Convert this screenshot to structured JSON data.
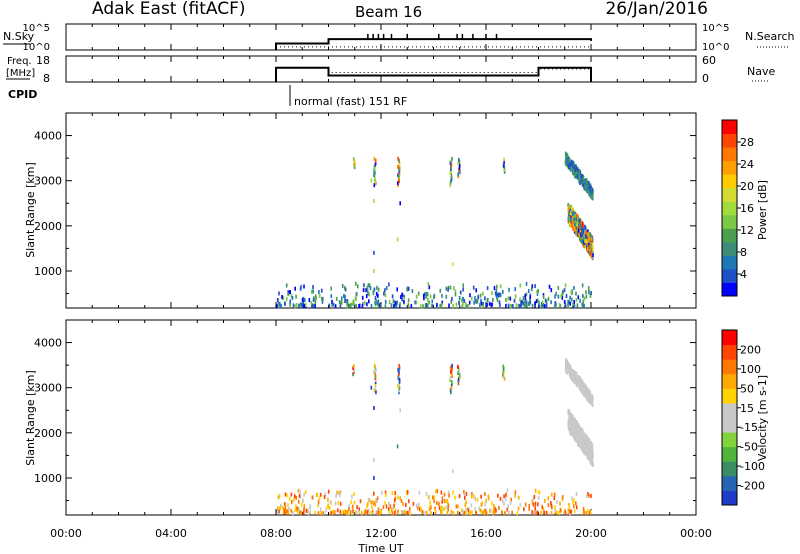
{
  "header": {
    "site": "Adak East (fitACF)",
    "beam": "Beam 16",
    "date": "26/Jan/2016"
  },
  "cpid": {
    "label": "CPID",
    "text": "normal (fast) 151 RF"
  },
  "chart_data": [
    {
      "type": "line",
      "id": "nsky-nsearch",
      "left_label": "N.Sky",
      "right_label": "N.Search",
      "left_ticks": [
        "10^5",
        "10^0"
      ],
      "right_ticks": [
        "10^5",
        "10^0"
      ],
      "x_range_hours": [
        0,
        24
      ],
      "x": [
        8,
        10,
        10.01,
        20
      ],
      "y": [
        0.25,
        0.25,
        0.4,
        0.35
      ],
      "spike_hours": [
        11.5,
        11.7,
        11.9,
        12.1,
        12.4,
        13.0,
        14.2,
        14.9,
        15.1,
        15.5,
        16.0,
        16.4
      ]
    },
    {
      "type": "line",
      "id": "freq-nave",
      "left_label_line1": "Freq.",
      "left_label_line2": "[MHz]",
      "right_label": "Nave",
      "left_ticks": [
        "18",
        "8"
      ],
      "right_ticks": [
        "60",
        "0"
      ],
      "ylim_left": [
        8,
        18
      ],
      "ylim_right": [
        0,
        60
      ],
      "x_range_hours": [
        0,
        24
      ],
      "freq_series": {
        "x": [
          8,
          10,
          10,
          18,
          18,
          20
        ],
        "y": [
          13.5,
          13.5,
          10.5,
          10.5,
          13.5,
          13.5
        ]
      },
      "nave_series": {
        "x": [
          8,
          10,
          10,
          18,
          18,
          20
        ],
        "y": [
          32,
          32,
          22,
          22,
          30,
          30
        ]
      }
    },
    {
      "type": "heatmap",
      "id": "power",
      "ylabel": "Slant Range [km]",
      "yticks": [
        1000,
        2000,
        3000,
        4000
      ],
      "ylim": [
        180,
        4500
      ],
      "x_range_hours": [
        0,
        24
      ],
      "colorbar_label": "Power [dB]",
      "colorbar_ticks": [
        "28",
        "24",
        "20",
        "16",
        "12",
        "8",
        "4"
      ],
      "colorbar_colors": [
        "#0000ff",
        "#1e50c8",
        "#1e78b4",
        "#3c8c78",
        "#4ba050",
        "#7ac843",
        "#a0dc3c",
        "#d2dc32",
        "#ffcc00",
        "#ffa000",
        "#ff7800",
        "#ff4600",
        "#ff0000"
      ]
    },
    {
      "type": "heatmap",
      "id": "velocity",
      "ylabel": "Slant Range [km]",
      "yticks": [
        1000,
        2000,
        3000,
        4000
      ],
      "ylim": [
        180,
        4500
      ],
      "x_range_hours": [
        0,
        24
      ],
      "colorbar_label": "Velocity [m s-1]",
      "colorbar_ticks": [
        "200",
        "100",
        "50",
        "15",
        "-15",
        "-50",
        "-100",
        "-200"
      ],
      "colorbar_colors": [
        "#1e3cc8",
        "#2864b4",
        "#3c8c64",
        "#50b43c",
        "#82d23c",
        "#c8c8c8",
        "#c8c8c8",
        "#ffd200",
        "#ffaa00",
        "#ff7800",
        "#ff4600",
        "#ff0000"
      ],
      "xlabel": "Time UT",
      "xticks": [
        "00:00",
        "04:00",
        "08:00",
        "12:00",
        "16:00",
        "20:00",
        "00:00"
      ]
    }
  ]
}
